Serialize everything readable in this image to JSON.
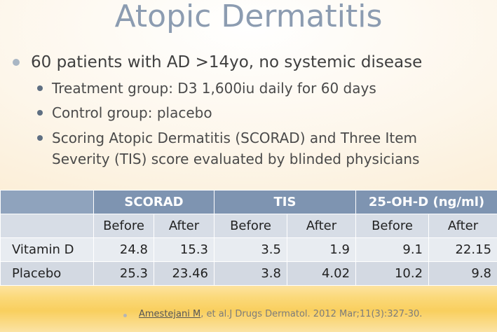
{
  "title": "Atopic Dermatitis",
  "bullet_main": "60 patients with AD >14yo, no systemic disease",
  "sub_bullets": [
    "Treatment group: D3 1,600iu daily for 60 days",
    "Control group: placebo",
    "Scoring Atopic Dermatitis (SCORAD) and Three Item",
    "Severity (TIS) score evaluated by blinded physicians"
  ],
  "table": {
    "groups": [
      "SCORAD",
      "TIS",
      "25-OH-D (ng/ml)"
    ],
    "subheaders": [
      "Before",
      "After",
      "Before",
      "After",
      "Before",
      "After"
    ],
    "rows": [
      {
        "label": "Vitamin D",
        "values": [
          "24.8",
          "15.3",
          "3.5",
          "1.9",
          "9.1",
          "22.15"
        ]
      },
      {
        "label": "Placebo",
        "values": [
          "25.3",
          "23.46",
          "3.8",
          "4.02",
          "10.2",
          "9.8"
        ]
      }
    ]
  },
  "reference": {
    "author_link": "Amestejani M",
    "rest": ", et al.J Drugs Dermatol. 2012 Mar;11(3):327-30."
  }
}
